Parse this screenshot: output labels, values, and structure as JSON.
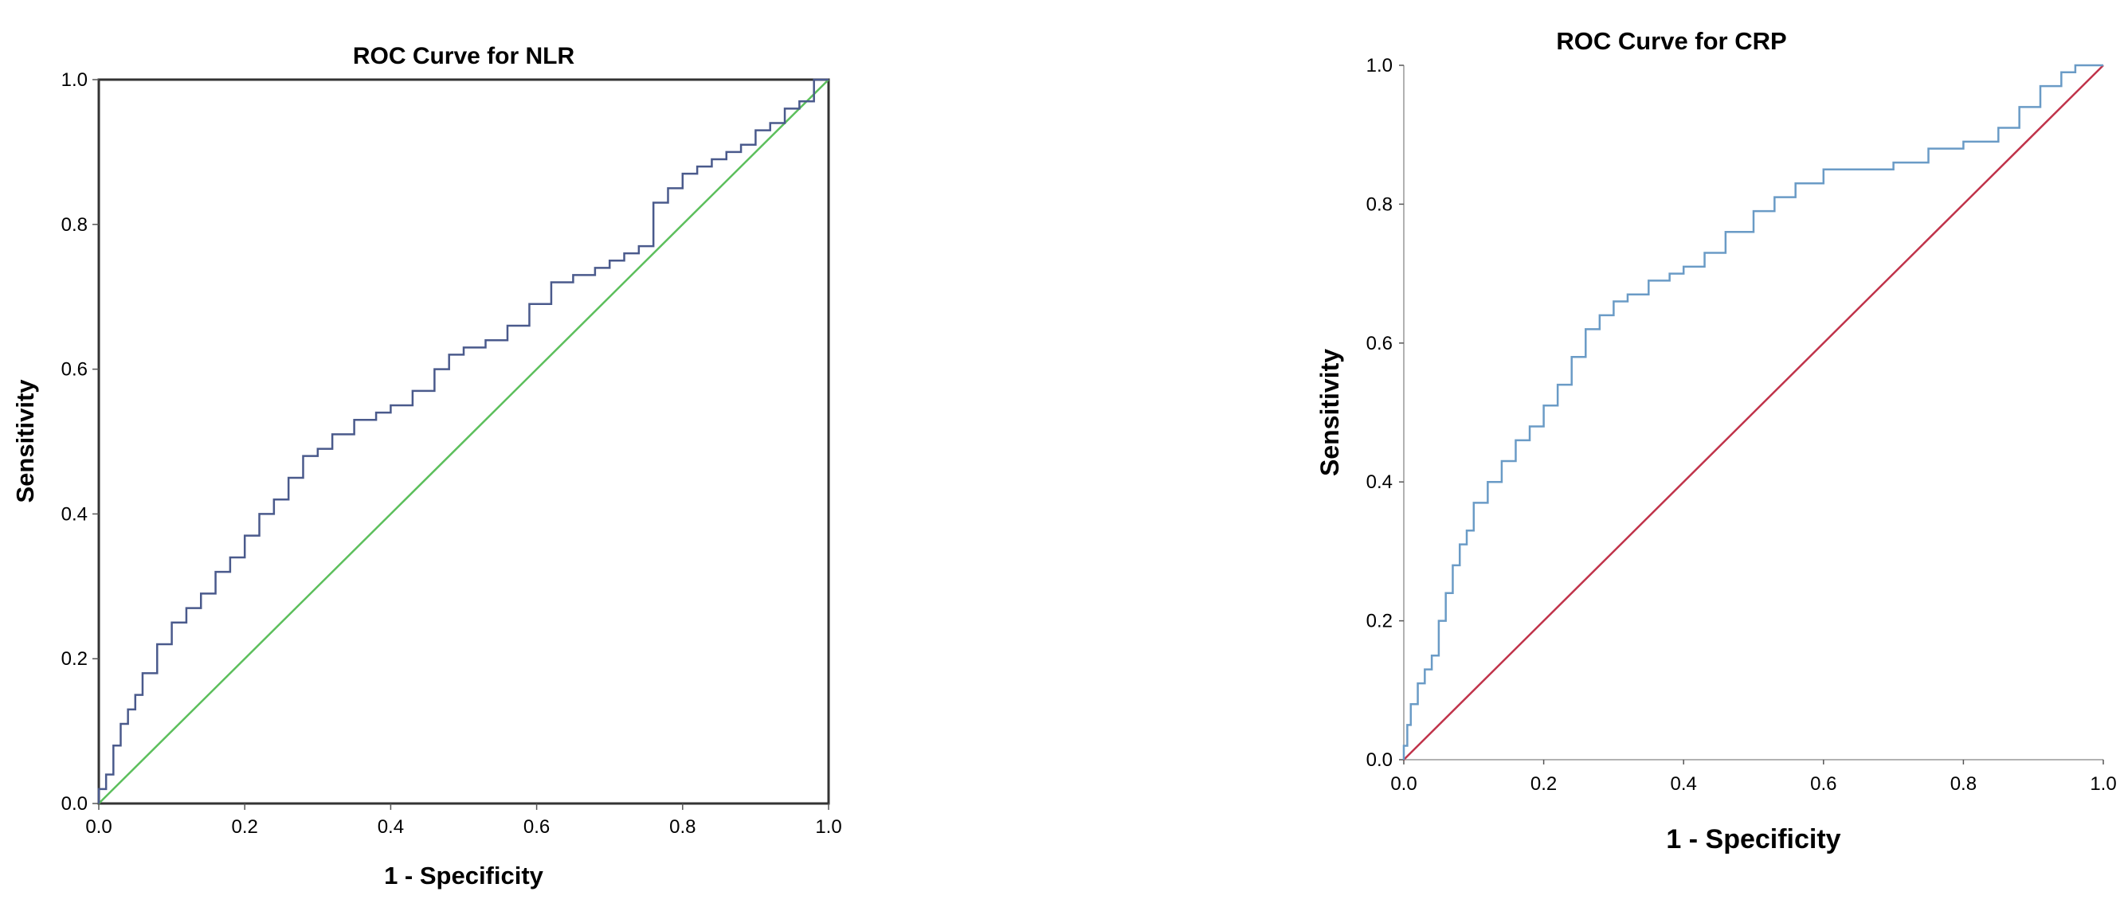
{
  "chart_data": [
    {
      "type": "line",
      "title": "ROC Curve for NLR",
      "xlabel": "1 - Specificity",
      "ylabel": "Sensitivity",
      "xlim": [
        0,
        1
      ],
      "ylim": [
        0,
        1
      ],
      "xticks": [
        "0.0",
        "0.2",
        "0.4",
        "0.6",
        "0.8",
        "1.0"
      ],
      "yticks": [
        "0.0",
        "0.2",
        "0.4",
        "0.6",
        "0.8",
        "1.0"
      ],
      "frame": "box",
      "grid": false,
      "legend": "none",
      "curve_color": "#4a5a8c",
      "reference_color": "#5cbf5c",
      "series": [
        {
          "x": [
            0,
            0.01,
            0.02,
            0.03,
            0.04,
            0.05,
            0.06,
            0.08,
            0.1,
            0.12,
            0.14,
            0.16,
            0.18,
            0.2,
            0.22,
            0.24,
            0.26,
            0.28,
            0.3,
            0.32,
            0.35,
            0.38,
            0.4,
            0.43,
            0.46,
            0.48,
            0.5,
            0.53,
            0.56,
            0.59,
            0.62,
            0.65,
            0.68,
            0.7,
            0.72,
            0.74,
            0.76,
            0.78,
            0.8,
            0.82,
            0.84,
            0.86,
            0.88,
            0.9,
            0.92,
            0.94,
            0.96,
            0.98,
            1.0
          ],
          "y": [
            0,
            0.02,
            0.04,
            0.08,
            0.11,
            0.13,
            0.15,
            0.18,
            0.22,
            0.25,
            0.27,
            0.29,
            0.32,
            0.34,
            0.37,
            0.4,
            0.42,
            0.45,
            0.48,
            0.49,
            0.51,
            0.53,
            0.54,
            0.55,
            0.57,
            0.6,
            0.62,
            0.63,
            0.64,
            0.66,
            0.69,
            0.72,
            0.73,
            0.74,
            0.75,
            0.76,
            0.77,
            0.83,
            0.85,
            0.87,
            0.88,
            0.89,
            0.9,
            0.91,
            0.93,
            0.94,
            0.96,
            0.97,
            1.0
          ]
        },
        {
          "x": [
            0,
            1
          ],
          "y": [
            0,
            1
          ]
        }
      ]
    },
    {
      "type": "line",
      "title": "ROC Curve for CRP",
      "xlabel": "1 - Specificity",
      "ylabel": "Sensitivity",
      "xlim": [
        0,
        1
      ],
      "ylim": [
        0,
        1
      ],
      "xticks": [
        "0.0",
        "0.2",
        "0.4",
        "0.6",
        "0.8",
        "1.0"
      ],
      "yticks": [
        "0.0",
        "0.2",
        "0.4",
        "0.6",
        "0.8",
        "1.0"
      ],
      "frame": "axes",
      "grid": false,
      "legend": "none",
      "curve_color": "#6a9bc6",
      "reference_color": "#c0334a",
      "series": [
        {
          "x": [
            0,
            0.005,
            0.01,
            0.02,
            0.03,
            0.04,
            0.05,
            0.06,
            0.07,
            0.08,
            0.09,
            0.1,
            0.12,
            0.14,
            0.16,
            0.18,
            0.2,
            0.22,
            0.24,
            0.26,
            0.28,
            0.3,
            0.32,
            0.35,
            0.38,
            0.4,
            0.43,
            0.46,
            0.5,
            0.53,
            0.56,
            0.6,
            0.65,
            0.7,
            0.75,
            0.8,
            0.85,
            0.88,
            0.91,
            0.94,
            0.96,
            0.98,
            1.0
          ],
          "y": [
            0,
            0.02,
            0.05,
            0.08,
            0.11,
            0.13,
            0.15,
            0.2,
            0.24,
            0.28,
            0.31,
            0.33,
            0.37,
            0.4,
            0.43,
            0.46,
            0.48,
            0.51,
            0.54,
            0.58,
            0.62,
            0.64,
            0.66,
            0.67,
            0.69,
            0.7,
            0.71,
            0.73,
            0.76,
            0.79,
            0.81,
            0.83,
            0.85,
            0.85,
            0.86,
            0.88,
            0.89,
            0.91,
            0.94,
            0.97,
            0.99,
            1.0,
            1.0
          ]
        },
        {
          "x": [
            0,
            1
          ],
          "y": [
            0,
            1
          ]
        }
      ]
    }
  ]
}
